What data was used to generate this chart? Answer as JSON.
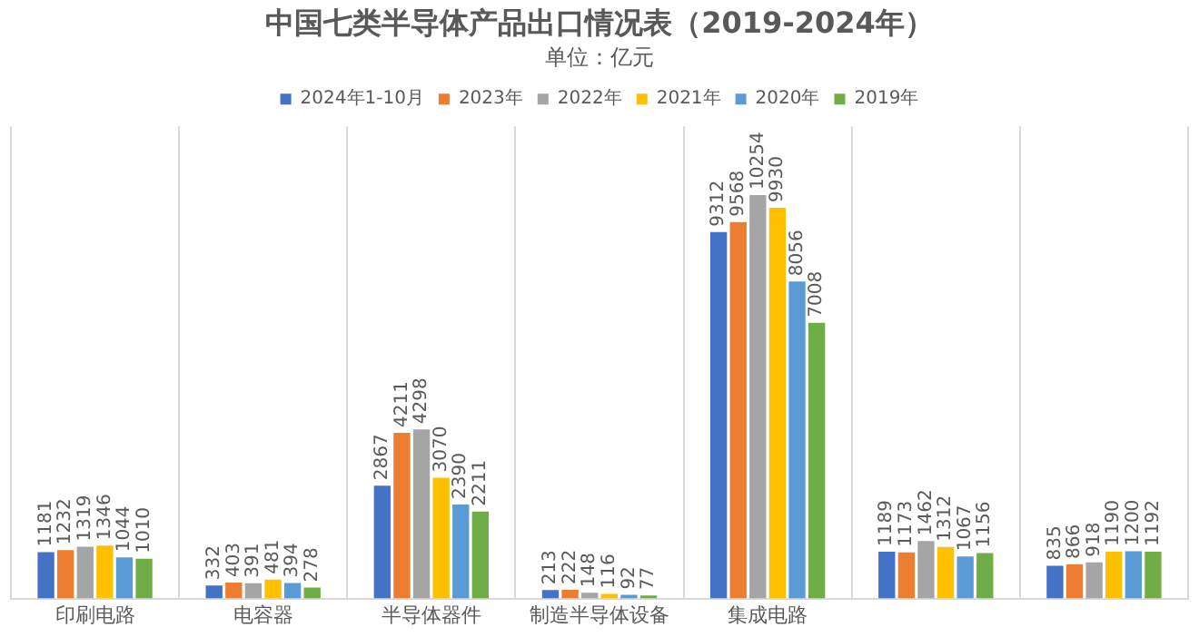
{
  "chart_data": {
    "type": "bar",
    "title": "中国七类半导体产品出口情况表（2019-2024年）",
    "subtitle": "单位：亿元",
    "categories": [
      "印刷电路",
      "电容器",
      "半导体器件",
      "制造半导体设备",
      "集成电路",
      null,
      null
    ],
    "series": [
      {
        "name": "2024年1-10月",
        "color": "#4472c4",
        "values": [
          1181,
          332,
          2867,
          213,
          9312,
          1189,
          835
        ]
      },
      {
        "name": "2023年",
        "color": "#ed7d31",
        "values": [
          1232,
          403,
          4211,
          222,
          9568,
          1173,
          866
        ]
      },
      {
        "name": "2022年",
        "color": "#a5a5a5",
        "values": [
          1319,
          391,
          4298,
          148,
          10254,
          1462,
          918
        ]
      },
      {
        "name": "2021年",
        "color": "#ffc000",
        "values": [
          1346,
          481,
          3070,
          116,
          9930,
          1312,
          1190
        ]
      },
      {
        "name": "2020年",
        "color": "#5b9bd5",
        "values": [
          1044,
          394,
          2390,
          92,
          8056,
          1067,
          1200
        ]
      },
      {
        "name": "2019年",
        "color": "#70ad47",
        "values": [
          1010,
          278,
          2211,
          77,
          7008,
          1156,
          1192
        ]
      }
    ],
    "data_labels": true,
    "grid": "x",
    "legend": "top"
  }
}
